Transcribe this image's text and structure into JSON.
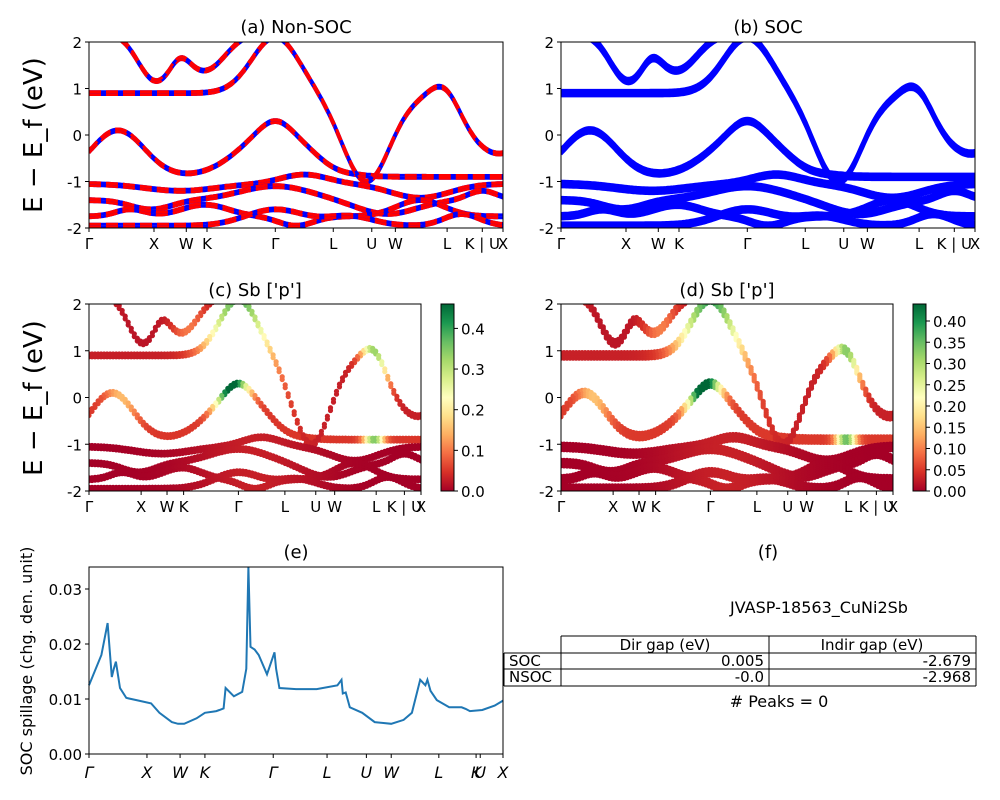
{
  "figure": {
    "ylabel_band": "E − E_f (eV)",
    "ylabel_spillage": "SOC spillage (chg. den. unit)"
  },
  "kpath_labels": [
    "Γ",
    "X",
    "W",
    "K",
    "Γ",
    "L",
    "U",
    "W",
    "L",
    "K | U",
    "X"
  ],
  "colorbar_c_ticks": [
    "0.0",
    "0.1",
    "0.2",
    "0.3",
    "0.4"
  ],
  "colorbar_d_ticks": [
    "0.00",
    "0.05",
    "0.10",
    "0.15",
    "0.20",
    "0.25",
    "0.30",
    "0.35",
    "0.40"
  ],
  "table": {
    "title": "JVASP-18563_CuNi2Sb",
    "col_headers": [
      "Dir gap (eV)",
      "Indir gap (eV)"
    ],
    "rows": [
      {
        "label": "SOC",
        "dir": "0.005",
        "indir": "-2.679"
      },
      {
        "label": "NSOC",
        "dir": "-0.0",
        "indir": "-2.968"
      }
    ],
    "peaks": "# Peaks = 0"
  },
  "chart_data": [
    {
      "type": "line",
      "title": "(a) Non-SOC",
      "ylabel": "E − E_f (eV)",
      "ylim": [
        -2,
        2
      ],
      "yticks": [
        -2,
        -1,
        0,
        1,
        2
      ],
      "xticklabels": [
        "Γ",
        "X",
        "W",
        "K",
        "Γ",
        "L",
        "U",
        "W",
        "L",
        "K | U",
        "X"
      ],
      "series": [
        {
          "color": "#0000ff"
        },
        {
          "color": "#ff0000",
          "style": "dashed"
        }
      ]
    },
    {
      "type": "line",
      "title": "(b) SOC",
      "ylim": [
        -2,
        2
      ],
      "yticks": [
        -2,
        -1,
        0,
        1,
        2
      ],
      "xticklabels": [
        "Γ",
        "X",
        "W",
        "K",
        "Γ",
        "L",
        "U",
        "W",
        "L",
        "K | U",
        "X"
      ],
      "series": [
        {
          "color": "#0000ff"
        }
      ]
    },
    {
      "type": "scatter",
      "title": "(c)  Sb ['p']",
      "ylabel": "E − E_f (eV)",
      "ylim": [
        -2,
        2
      ],
      "yticks": [
        -2,
        -1,
        0,
        1,
        2
      ],
      "xticklabels": [
        "Γ",
        "X",
        "W",
        "K",
        "Γ",
        "L",
        "U",
        "W",
        "L",
        "K | U",
        "X"
      ],
      "colormap": "RdYlGn",
      "color_range": [
        0.0,
        0.46
      ]
    },
    {
      "type": "scatter",
      "title": "(d) Sb ['p']",
      "ylim": [
        -2,
        2
      ],
      "yticks": [
        -2,
        -1,
        0,
        1,
        2
      ],
      "xticklabels": [
        "Γ",
        "X",
        "W",
        "K",
        "Γ",
        "L",
        "U",
        "W",
        "L",
        "K | U",
        "X"
      ],
      "colormap": "RdYlGn",
      "color_range": [
        0.0,
        0.44
      ]
    },
    {
      "type": "line",
      "title": "(e)",
      "ylabel": "SOC spillage (chg. den. unit)",
      "ylim": [
        0,
        0.034
      ],
      "yticklabels": [
        "0.00",
        "0.01",
        "0.02",
        "0.03"
      ],
      "xticklabels": [
        "Γ",
        "X",
        "W",
        "K",
        "Γ",
        "L",
        "U",
        "W",
        "L",
        "K",
        "U",
        "X"
      ],
      "x": [
        0,
        0.03,
        0.045,
        0.055,
        0.06,
        0.065,
        0.075,
        0.09,
        0.12,
        0.15,
        0.17,
        0.2,
        0.215,
        0.23,
        0.26,
        0.28,
        0.3,
        0.3075,
        0.315,
        0.325,
        0.33,
        0.35,
        0.37,
        0.38,
        0.385,
        0.39,
        0.4,
        0.41,
        0.43,
        0.448,
        0.452,
        0.46,
        0.5,
        0.55,
        0.6,
        0.61,
        0.613,
        0.62,
        0.63,
        0.66,
        0.69,
        0.73,
        0.76,
        0.78,
        0.8,
        0.8125,
        0.8175,
        0.825,
        0.84,
        0.87,
        0.895,
        0.9,
        0.91,
        0.92,
        0.95,
        0.98,
        1.0
      ],
      "y": [
        0.0125,
        0.018,
        0.0238,
        0.014,
        0.0155,
        0.0168,
        0.012,
        0.0102,
        0.0097,
        0.0092,
        0.0075,
        0.0058,
        0.0055,
        0.0055,
        0.0065,
        0.0075,
        0.0077,
        0.0078,
        0.008,
        0.0083,
        0.012,
        0.0105,
        0.0113,
        0.0155,
        0.034,
        0.0195,
        0.019,
        0.018,
        0.0145,
        0.0185,
        0.0155,
        0.012,
        0.0118,
        0.0118,
        0.0125,
        0.0135,
        0.011,
        0.0112,
        0.0085,
        0.0075,
        0.0058,
        0.0055,
        0.0062,
        0.0075,
        0.0135,
        0.0125,
        0.0135,
        0.0115,
        0.0098,
        0.0085,
        0.0085,
        0.0085,
        0.0082,
        0.0078,
        0.008,
        0.0088,
        0.0097
      ],
      "color": "#1f77b4"
    }
  ]
}
